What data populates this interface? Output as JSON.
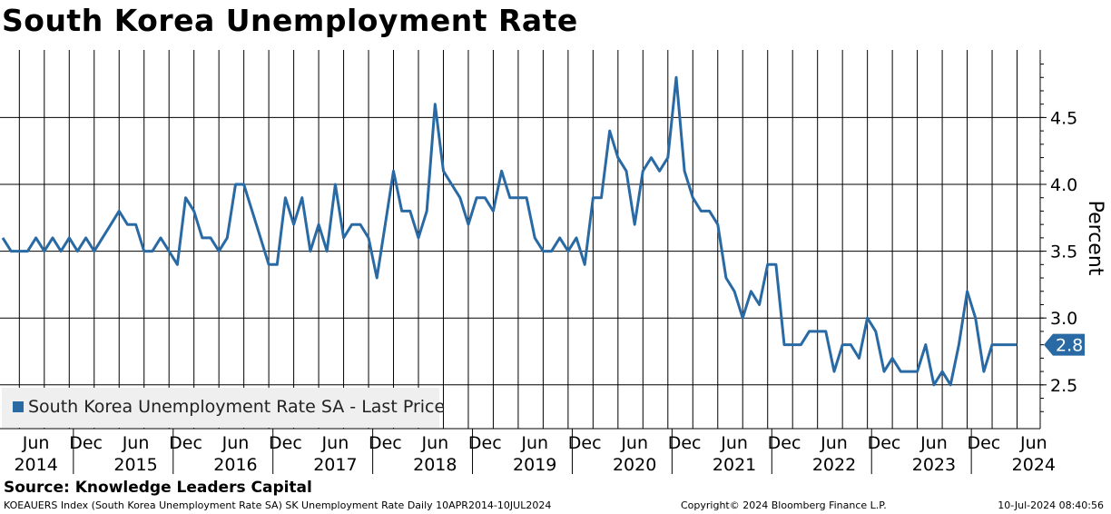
{
  "chart_data": {
    "type": "line",
    "title": "South Korea Unemployment Rate",
    "ylabel": "Percent",
    "ylim": [
      2.2,
      4.95
    ],
    "y_ticks": [
      "2.5",
      "3.0",
      "3.5",
      "4.0",
      "4.5"
    ],
    "x_ticks": [
      {
        "month": "Jun",
        "year": "2014"
      },
      {
        "month": "Dec",
        "year": ""
      },
      {
        "month": "Jun",
        "year": "2015"
      },
      {
        "month": "Dec",
        "year": ""
      },
      {
        "month": "Jun",
        "year": "2016"
      },
      {
        "month": "Dec",
        "year": ""
      },
      {
        "month": "Jun",
        "year": "2017"
      },
      {
        "month": "Dec",
        "year": ""
      },
      {
        "month": "Jun",
        "year": "2018"
      },
      {
        "month": "Dec",
        "year": ""
      },
      {
        "month": "Jun",
        "year": "2019"
      },
      {
        "month": "Dec",
        "year": ""
      },
      {
        "month": "Jun",
        "year": "2020"
      },
      {
        "month": "Dec",
        "year": ""
      },
      {
        "month": "Jun",
        "year": "2021"
      },
      {
        "month": "Dec",
        "year": ""
      },
      {
        "month": "Jun",
        "year": "2022"
      },
      {
        "month": "Dec",
        "year": ""
      },
      {
        "month": "Jun",
        "year": "2023"
      },
      {
        "month": "Dec",
        "year": ""
      },
      {
        "month": "Jun",
        "year": "2024"
      }
    ],
    "grid": true,
    "legend_position": "bottom-left",
    "series": [
      {
        "name": "South Korea Unemployment Rate SA - Last Price",
        "color": "#2a6aa4",
        "start": "2014-04",
        "frequency": "monthly",
        "last_value_label": "2.8",
        "values": [
          3.6,
          3.5,
          3.5,
          3.5,
          3.6,
          3.5,
          3.6,
          3.5,
          3.6,
          3.5,
          3.6,
          3.5,
          3.6,
          3.7,
          3.8,
          3.7,
          3.7,
          3.5,
          3.5,
          3.6,
          3.5,
          3.4,
          3.9,
          3.8,
          3.6,
          3.6,
          3.5,
          3.6,
          4.0,
          4.0,
          3.8,
          3.6,
          3.4,
          3.4,
          3.9,
          3.7,
          3.9,
          3.5,
          3.7,
          3.5,
          4.0,
          3.6,
          3.7,
          3.7,
          3.6,
          3.3,
          3.7,
          4.1,
          3.8,
          3.8,
          3.6,
          3.8,
          4.6,
          4.1,
          4.0,
          3.9,
          3.7,
          3.9,
          3.9,
          3.8,
          4.1,
          3.9,
          3.9,
          3.9,
          3.6,
          3.5,
          3.5,
          3.6,
          3.5,
          3.6,
          3.4,
          3.9,
          3.9,
          4.4,
          4.2,
          4.1,
          3.7,
          4.1,
          4.2,
          4.1,
          4.2,
          4.8,
          4.1,
          3.9,
          3.8,
          3.8,
          3.7,
          3.3,
          3.2,
          3.0,
          3.2,
          3.1,
          3.4,
          3.4,
          2.8,
          2.8,
          2.8,
          2.9,
          2.9,
          2.9,
          2.6,
          2.8,
          2.8,
          2.7,
          3.0,
          2.9,
          2.6,
          2.7,
          2.6,
          2.6,
          2.6,
          2.8,
          2.5,
          2.6,
          2.5,
          2.8,
          3.2,
          3.0,
          2.6,
          2.8,
          2.8,
          2.8,
          2.8
        ]
      }
    ]
  },
  "source": "Source: Knowledge Leaders Capital",
  "footer": {
    "left": "KOEAUERS Index (South Korea Unemployment Rate SA) SK Unemployment Rate  Daily 10APR2014-10JUL2024",
    "middle": "Copyright© 2024 Bloomberg Finance L.P.",
    "right": "10-Jul-2024 08:40:56"
  }
}
